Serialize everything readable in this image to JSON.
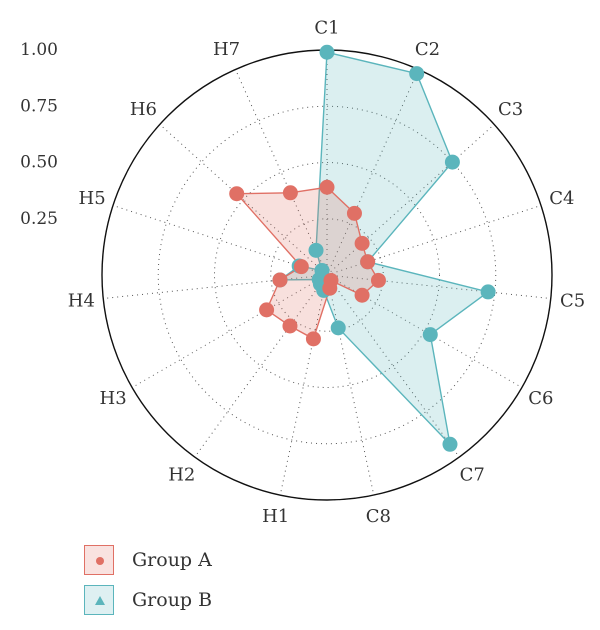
{
  "chart_data": {
    "type": "radar",
    "axes": [
      "C1",
      "C2",
      "C3",
      "C4",
      "C5",
      "C6",
      "C7",
      "C8",
      "H1",
      "H2",
      "H3",
      "H4",
      "H5",
      "H6",
      "H7"
    ],
    "radial_ticks": [
      0.25,
      0.5,
      0.75,
      1.0
    ],
    "radial_tick_labels": [
      "0.25",
      "0.50",
      "0.75",
      "1.00"
    ],
    "rlim": [
      0,
      1.0
    ],
    "series": [
      {
        "name": "Group A",
        "color": "#E07065",
        "marker": "circle",
        "values": [
          0.39,
          0.3,
          0.21,
          0.19,
          0.23,
          0.18,
          0.03,
          0.06,
          0.29,
          0.28,
          0.31,
          0.21,
          0.12,
          0.54,
          0.4
        ]
      },
      {
        "name": "Group B",
        "color": "#5BB5BC",
        "marker": "triangle",
        "values": [
          0.99,
          0.98,
          0.75,
          0.19,
          0.72,
          0.53,
          0.93,
          0.24,
          0.07,
          0.05,
          0.04,
          0.21,
          0.13,
          0.03,
          0.12
        ]
      }
    ],
    "grid": true,
    "legend": "bottom-left"
  }
}
